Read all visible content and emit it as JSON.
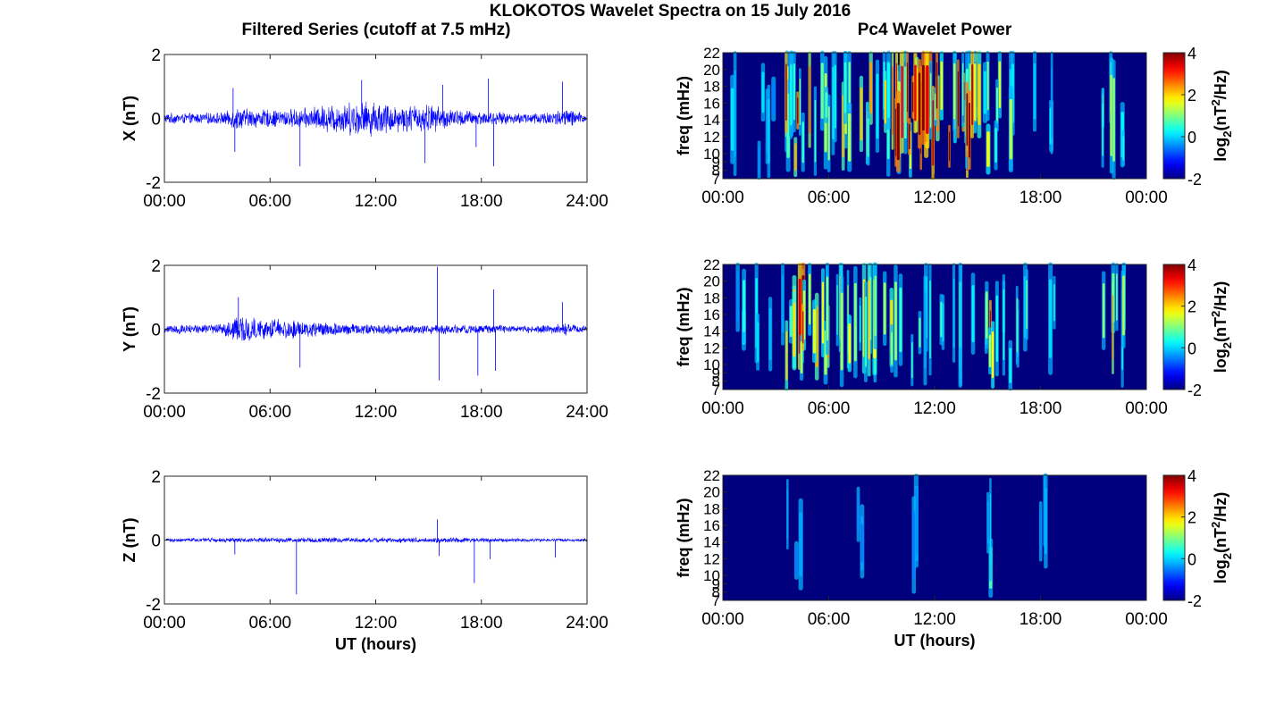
{
  "figure": {
    "title": "KLOKOTOS Wavelet Spectra on 15 July 2016",
    "left_column_title": "Filtered Series (cutoff at 7.5 mHz)",
    "right_column_title": "Pc4 Wavelet Power",
    "bottom_xlabel": "UT (hours)",
    "spectrum_ylabel": "freq (mHz)",
    "colorbar_label_base": "log",
    "colorbar_label_sub": "2",
    "colorbar_label_open": "(nT",
    "colorbar_label_sup": "2",
    "colorbar_label_close": "/Hz)",
    "colors": {
      "series_line": "#0000ff",
      "spectrum_background": "#00007f"
    },
    "colormap": "jet"
  },
  "chart_data": [
    {
      "type": "line",
      "component": "X",
      "ylabel": "X (nT)",
      "x_range_hours": [
        0,
        24
      ],
      "x_tick_labels": [
        "00:00",
        "06:00",
        "12:00",
        "18:00",
        "24:00"
      ],
      "ylim": [
        -2,
        2
      ],
      "y_tick_labels": [
        "2",
        "0",
        "-2"
      ],
      "envelope_halfwidth": [
        {
          "t": 0,
          "a": 0.18
        },
        {
          "t": 2,
          "a": 0.18
        },
        {
          "t": 3.5,
          "a": 0.22
        },
        {
          "t": 4,
          "a": 0.4
        },
        {
          "t": 5,
          "a": 0.32
        },
        {
          "t": 6.5,
          "a": 0.3
        },
        {
          "t": 8,
          "a": 0.35
        },
        {
          "t": 9.5,
          "a": 0.5
        },
        {
          "t": 11,
          "a": 0.6
        },
        {
          "t": 12,
          "a": 0.6
        },
        {
          "t": 13.5,
          "a": 0.45
        },
        {
          "t": 15,
          "a": 0.5
        },
        {
          "t": 16.5,
          "a": 0.3
        },
        {
          "t": 18,
          "a": 0.25
        },
        {
          "t": 20,
          "a": 0.18
        },
        {
          "t": 22,
          "a": 0.25
        },
        {
          "t": 23,
          "a": 0.35
        },
        {
          "t": 24,
          "a": 0.12
        }
      ],
      "spikes": [
        {
          "t": 3.9,
          "v": 0.95
        },
        {
          "t": 4.0,
          "v": -1.05
        },
        {
          "t": 7.7,
          "v": -1.5
        },
        {
          "t": 11.2,
          "v": 1.2
        },
        {
          "t": 14.8,
          "v": -1.4
        },
        {
          "t": 15.8,
          "v": 1.05
        },
        {
          "t": 17.7,
          "v": -0.9
        },
        {
          "t": 18.4,
          "v": 1.25
        },
        {
          "t": 18.7,
          "v": -1.5
        },
        {
          "t": 22.6,
          "v": 1.15
        }
      ]
    },
    {
      "type": "line",
      "component": "Y",
      "ylabel": "Y (nT)",
      "x_range_hours": [
        0,
        24
      ],
      "x_tick_labels": [
        "00:00",
        "06:00",
        "12:00",
        "18:00",
        "24:00"
      ],
      "ylim": [
        -2,
        2
      ],
      "y_tick_labels": [
        "2",
        "0",
        "-2"
      ],
      "envelope_halfwidth": [
        {
          "t": 0,
          "a": 0.15
        },
        {
          "t": 3,
          "a": 0.18
        },
        {
          "t": 4,
          "a": 0.45
        },
        {
          "t": 5,
          "a": 0.4
        },
        {
          "t": 6,
          "a": 0.35
        },
        {
          "t": 7.5,
          "a": 0.32
        },
        {
          "t": 9,
          "a": 0.25
        },
        {
          "t": 11,
          "a": 0.18
        },
        {
          "t": 14,
          "a": 0.15
        },
        {
          "t": 16,
          "a": 0.18
        },
        {
          "t": 20,
          "a": 0.12
        },
        {
          "t": 22,
          "a": 0.15
        },
        {
          "t": 23,
          "a": 0.22
        },
        {
          "t": 24,
          "a": 0.1
        }
      ],
      "spikes": [
        {
          "t": 4.2,
          "v": 1.0
        },
        {
          "t": 7.7,
          "v": -1.2
        },
        {
          "t": 15.5,
          "v": 1.95
        },
        {
          "t": 15.6,
          "v": -1.6
        },
        {
          "t": 17.8,
          "v": -1.45
        },
        {
          "t": 18.7,
          "v": 1.25
        },
        {
          "t": 18.8,
          "v": -1.3
        },
        {
          "t": 22.6,
          "v": 0.85
        }
      ]
    },
    {
      "type": "line",
      "component": "Z",
      "ylabel": "Z (nT)",
      "x_range_hours": [
        0,
        24
      ],
      "x_tick_labels": [
        "00:00",
        "06:00",
        "12:00",
        "18:00",
        "24:00"
      ],
      "ylim": [
        -2,
        2
      ],
      "y_tick_labels": [
        "2",
        "0",
        "-2"
      ],
      "xlabel": "UT (hours)",
      "envelope_halfwidth": [
        {
          "t": 0,
          "a": 0.06
        },
        {
          "t": 4,
          "a": 0.08
        },
        {
          "t": 8,
          "a": 0.09
        },
        {
          "t": 12,
          "a": 0.08
        },
        {
          "t": 16,
          "a": 0.09
        },
        {
          "t": 20,
          "a": 0.06
        },
        {
          "t": 24,
          "a": 0.05
        }
      ],
      "spikes": [
        {
          "t": 4.0,
          "v": -0.45
        },
        {
          "t": 7.5,
          "v": -1.7
        },
        {
          "t": 15.5,
          "v": 0.65
        },
        {
          "t": 15.6,
          "v": -0.5
        },
        {
          "t": 17.6,
          "v": -1.35
        },
        {
          "t": 18.5,
          "v": -0.6
        },
        {
          "t": 22.2,
          "v": -0.55
        }
      ]
    },
    {
      "type": "heatmap",
      "component": "X",
      "ylabel": "freq (mHz)",
      "x_range_hours": [
        0,
        24
      ],
      "x_tick_labels": [
        "00:00",
        "06:00",
        "12:00",
        "18:00",
        "00:00"
      ],
      "freq_range_mHz": [
        7,
        22
      ],
      "freq_tick_values": [
        7,
        8,
        9,
        10,
        12,
        14,
        16,
        18,
        20,
        22
      ],
      "freq_tick_labels": [
        "7",
        "8",
        "9",
        "10",
        "12",
        "14",
        "16",
        "18",
        "20",
        "22"
      ],
      "colorbar_range": [
        -2,
        4
      ],
      "colorbar_tick_labels": [
        "4",
        "2",
        "0",
        "-2"
      ],
      "active_intervals_hours": [
        [
          0.5,
          3.5,
          0.25
        ],
        [
          3.5,
          5.0,
          0.85
        ],
        [
          5.0,
          8.5,
          0.55
        ],
        [
          8.5,
          9.5,
          0.5
        ],
        [
          9.5,
          14.5,
          1.0
        ],
        [
          14.5,
          16.5,
          0.55
        ],
        [
          17.5,
          19.0,
          0.2
        ],
        [
          21.5,
          22.8,
          0.6
        ]
      ]
    },
    {
      "type": "heatmap",
      "component": "Y",
      "ylabel": "freq (mHz)",
      "x_range_hours": [
        0,
        24
      ],
      "x_tick_labels": [
        "00:00",
        "06:00",
        "12:00",
        "18:00",
        "00:00"
      ],
      "freq_range_mHz": [
        7,
        22
      ],
      "freq_tick_values": [
        7,
        8,
        9,
        10,
        12,
        14,
        16,
        18,
        20,
        22
      ],
      "freq_tick_labels": [
        "7",
        "8",
        "9",
        "10",
        "12",
        "14",
        "16",
        "18",
        "20",
        "22"
      ],
      "colorbar_range": [
        -2,
        4
      ],
      "colorbar_tick_labels": [
        "4",
        "2",
        "0",
        "-2"
      ],
      "active_intervals_hours": [
        [
          0.5,
          3.5,
          0.25
        ],
        [
          3.5,
          5.0,
          0.9
        ],
        [
          5.0,
          8.0,
          0.6
        ],
        [
          8.0,
          11.0,
          0.5
        ],
        [
          11.0,
          15.0,
          0.35
        ],
        [
          15.0,
          15.3,
          0.9
        ],
        [
          15.3,
          19.0,
          0.3
        ],
        [
          21.5,
          22.8,
          0.6
        ]
      ]
    },
    {
      "type": "heatmap",
      "component": "Z",
      "ylabel": "freq (mHz)",
      "xlabel": "UT (hours)",
      "x_range_hours": [
        0,
        24
      ],
      "x_tick_labels": [
        "00:00",
        "06:00",
        "12:00",
        "18:00",
        "00:00"
      ],
      "freq_range_mHz": [
        7,
        22
      ],
      "freq_tick_values": [
        7,
        8,
        9,
        10,
        12,
        14,
        16,
        18,
        20,
        22
      ],
      "freq_tick_labels": [
        "7",
        "8",
        "9",
        "10",
        "12",
        "14",
        "16",
        "18",
        "20",
        "22"
      ],
      "colorbar_range": [
        -2,
        4
      ],
      "colorbar_tick_labels": [
        "4",
        "2",
        "0",
        "-2"
      ],
      "active_intervals_hours": [
        [
          3.5,
          4.5,
          0.12
        ],
        [
          7.5,
          8.0,
          0.1
        ],
        [
          10.5,
          11.5,
          0.15
        ],
        [
          15.0,
          15.2,
          0.35
        ],
        [
          18.0,
          18.5,
          0.15
        ]
      ]
    }
  ]
}
